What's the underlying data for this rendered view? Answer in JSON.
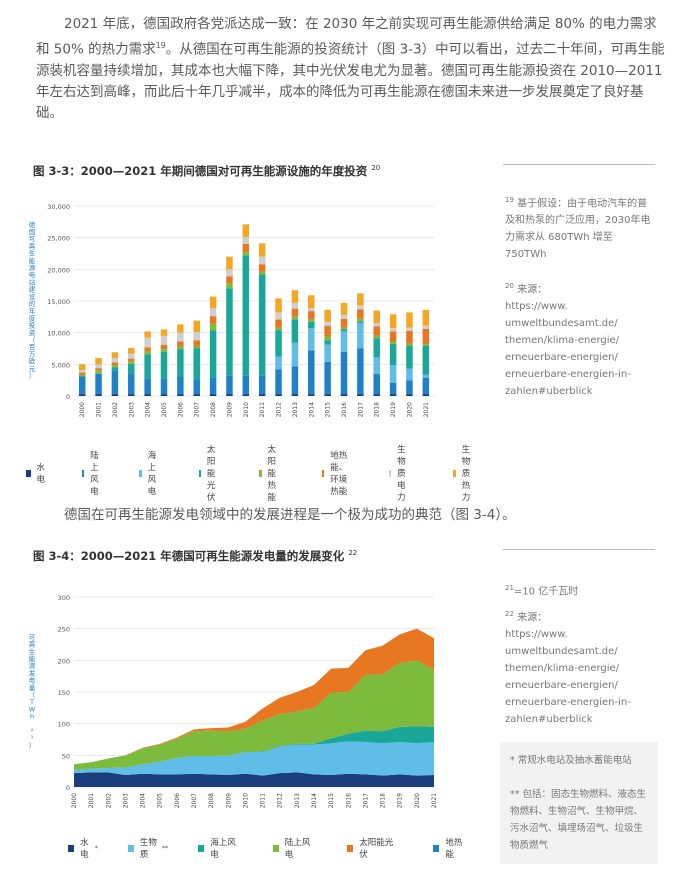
{
  "intro": {
    "text": "2021 年底，德国政府各党派达成一致：在 2030 年之前实现可再生能源供给满足 80% 的电力需求和 50% 的热力需求",
    "note": "19",
    "text2": "。从德国在可再生能源的投资统计（图 3-3）中可以看出，过去二十年间，可再生能源装机容量持续增加，其成本也大幅下降，其中光伏发电尤为显著。德国可再生能源投资在 2010—2011 年左右达到高峰，而此后十年几乎减半，成本的降低为可再生能源在德国未来进一步发展奠定了良好基础。"
  },
  "mid_para": "德国在可再生能源发电领域中的发展进程是一个极为成功的典范（图 3-4）。",
  "fig33": {
    "title": "图 3-3：2000—2021 年期间德国对可再生能源设施的年度投资",
    "note": "20"
  },
  "fig34": {
    "title": "图 3-4：2000—2021 年德国可再生能源发电量的发展变化",
    "note": "22"
  },
  "notes": {
    "n19_num": "19",
    "n19_text": "基于假设：由于电动汽车的普及和热泵的广泛应用，2030年电力需求从 680TWh 增至 750TWh",
    "n20_num": "20",
    "n20_label": "来源：",
    "n20_lines": [
      "https://www.",
      "umweltbundesamt.de/",
      "themen/klima-energie/",
      "erneuerbare-energien/",
      "erneuerbare-energien-in-",
      "zahlen#uberblick"
    ],
    "n21_num": "21",
    "n21_text": "=10 亿千瓦时",
    "n22_num": "22",
    "n22_label": "来源：",
    "n22_lines": [
      "https://www.",
      "umweltbundesamt.de/",
      "themen/klima-energie/",
      "erneuerbare-energien/",
      "erneuerbare-energien-in-",
      "zahlen#uberblick"
    ],
    "box1": "* 常规水电站及抽水蓄能电站",
    "box2": "** 包括：固态生物燃料、液态生物燃料、生物沼气、生物甲烷、污水沼气、填埋场沼气、垃圾生物质燃气"
  },
  "chart_data": [
    {
      "type": "bar",
      "stacked": true,
      "title": "图 3-3：2000—2021 年期间德国对可再生能源设施的年度投资",
      "ylabel": "德国可再生能源电站建设的年度投资（百万欧元）",
      "xlabel": "",
      "ylim": [
        0,
        30000
      ],
      "yticks": [
        "0",
        "5,000",
        "10,000",
        "15,000",
        "20,000",
        "25,000",
        "30,000"
      ],
      "grid": true,
      "legend_position": "bottom",
      "categories": [
        "2000",
        "2001",
        "2002",
        "2003",
        "2004",
        "2005",
        "2006",
        "2007",
        "2008",
        "2009",
        "2010",
        "2011",
        "2012",
        "2013",
        "2014",
        "2015",
        "2016",
        "2017",
        "2018",
        "2019",
        "2020",
        "2021"
      ],
      "series": [
        {
          "name": "水电",
          "color": "#1a3d7c",
          "values": [
            300,
            300,
            300,
            300,
            300,
            300,
            300,
            300,
            300,
            300,
            300,
            300,
            300,
            300,
            300,
            300,
            300,
            300,
            300,
            300,
            300,
            300
          ]
        },
        {
          "name": "陆上风电",
          "color": "#1f82c9",
          "values": [
            2800,
            3200,
            3700,
            3300,
            2500,
            2400,
            2700,
            2300,
            2600,
            2900,
            2900,
            2900,
            3900,
            4400,
            6900,
            5100,
            6700,
            7200,
            3200,
            1800,
            2200,
            2600
          ]
        },
        {
          "name": "海上风电",
          "color": "#5fbde8",
          "values": [
            0,
            0,
            0,
            0,
            0,
            0,
            0,
            0,
            0,
            0,
            0,
            0,
            2000,
            3700,
            3500,
            2700,
            3200,
            4000,
            2600,
            2800,
            1800,
            500
          ]
        },
        {
          "name": "太阳能光伏",
          "color": "#1aa79a",
          "values": [
            0,
            100,
            500,
            1500,
            3800,
            4300,
            4400,
            4900,
            7500,
            13800,
            19000,
            16000,
            4200,
            3700,
            1000,
            700,
            300,
            300,
            3000,
            3300,
            3600,
            4500
          ]
        },
        {
          "name": "太阳能热能",
          "color": "#7dbb3c",
          "values": [
            300,
            500,
            400,
            400,
            500,
            500,
            500,
            400,
            1000,
            800,
            500,
            400,
            400,
            400,
            400,
            600,
            300,
            400,
            400,
            400,
            400,
            300
          ]
        },
        {
          "name": "地热能、环境热能",
          "color": "#e87722",
          "values": [
            300,
            300,
            400,
            400,
            600,
            600,
            700,
            900,
            1200,
            1100,
            1300,
            1200,
            1300,
            1300,
            1300,
            1700,
            1400,
            1500,
            1500,
            1600,
            2000,
            2400
          ]
        },
        {
          "name": "生物质电力",
          "color": "#cfcfcf",
          "values": [
            400,
            600,
            700,
            800,
            1500,
            1400,
            1400,
            1300,
            1300,
            1100,
            1100,
            1200,
            1100,
            900,
            500,
            600,
            600,
            600,
            500,
            500,
            500,
            500
          ]
        },
        {
          "name": "生物质热力",
          "color": "#f5a623",
          "values": [
            900,
            1000,
            900,
            900,
            1000,
            1000,
            1300,
            1800,
            1800,
            2000,
            2000,
            2100,
            2200,
            2000,
            2000,
            1900,
            1900,
            1900,
            2000,
            2200,
            2400,
            2500
          ]
        }
      ]
    },
    {
      "type": "area",
      "stacked": true,
      "title": "图 3-4：2000—2021 年德国可再生能源发电量的发展变化",
      "ylabel": "可再生能源发电量（TWh ²¹）",
      "xlabel": "",
      "ylim": [
        0,
        300
      ],
      "yticks": [
        "0",
        "50",
        "100",
        "150",
        "200",
        "250",
        "300"
      ],
      "grid": true,
      "legend_position": "bottom",
      "categories": [
        "2000",
        "2001",
        "2002",
        "2003",
        "2004",
        "2005",
        "2006",
        "2007",
        "2008",
        "2009",
        "2010",
        "2011",
        "2012",
        "2013",
        "2014",
        "2015",
        "2016",
        "2017",
        "2018",
        "2019",
        "2020",
        "2021"
      ],
      "series": [
        {
          "name": "水电",
          "suffix": "*",
          "color": "#1a3d7c",
          "values": [
            22,
            23,
            23,
            19,
            21,
            20,
            20,
            21,
            20,
            19,
            21,
            18,
            22,
            23,
            20,
            19,
            21,
            20,
            18,
            20,
            18,
            19
          ]
        },
        {
          "name": "生物质",
          "suffix": "**",
          "color": "#5fbde8",
          "values": [
            5,
            6,
            7,
            12,
            15,
            20,
            26,
            28,
            29,
            31,
            34,
            37,
            42,
            44,
            47,
            50,
            51,
            51,
            51,
            51,
            51,
            52
          ]
        },
        {
          "name": "海上风电",
          "suffix": "",
          "color": "#1aa79a",
          "values": [
            0,
            0,
            0,
            0,
            0,
            0,
            0,
            0,
            0,
            0,
            0,
            1,
            1,
            1,
            1,
            8,
            12,
            18,
            19,
            24,
            27,
            24
          ]
        },
        {
          "name": "陆上风电",
          "suffix": "",
          "color": "#7dbb3c",
          "values": [
            9,
            10,
            15,
            19,
            25,
            27,
            30,
            39,
            40,
            38,
            37,
            49,
            50,
            51,
            57,
            72,
            66,
            88,
            90,
            101,
            104,
            90
          ]
        },
        {
          "name": "太阳能光伏",
          "suffix": "",
          "color": "#e87722",
          "values": [
            0,
            0,
            0,
            0,
            1,
            1,
            2,
            3,
            4,
            6,
            11,
            19,
            26,
            31,
            36,
            38,
            38,
            39,
            45,
            45,
            50,
            50
          ]
        },
        {
          "name": "地热能",
          "suffix": "",
          "color": "#1f82c9",
          "values": [
            0,
            0,
            0,
            0,
            0,
            0,
            0,
            0,
            0,
            0,
            0,
            0,
            0,
            0,
            0,
            0,
            0,
            0,
            0,
            0,
            0,
            0
          ]
        }
      ]
    }
  ]
}
